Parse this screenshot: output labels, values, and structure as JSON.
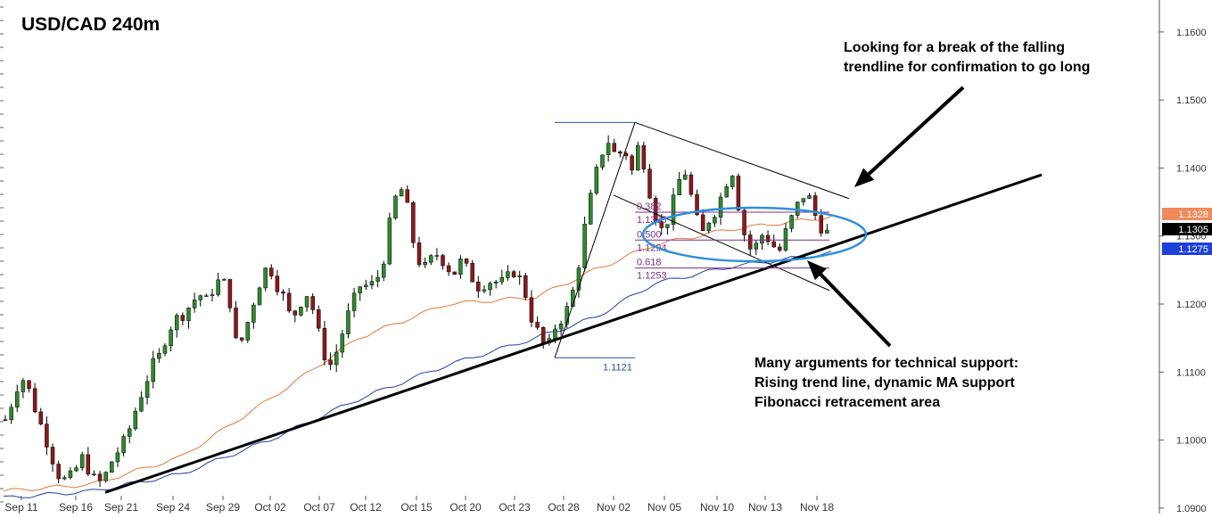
{
  "chart_data": {
    "type": "candlestick",
    "title": "USD/CAD 240m",
    "xlabel": "",
    "ylabel": "",
    "ylim": [
      1.0892,
      1.1647
    ],
    "y_ticks": [
      "1.1600",
      "1.1500",
      "1.1400",
      "1.1300",
      "1.1200",
      "1.1100",
      "1.1000",
      "1.0900"
    ],
    "x_labels": [
      "Sep 11",
      "Sep 16",
      "Sep 21",
      "Sep 24",
      "Sep 29",
      "Oct 02",
      "Oct 07",
      "Oct 12",
      "Oct 15",
      "Oct 20",
      "Oct 23",
      "Oct 28",
      "Nov 02",
      "Nov 05",
      "Nov 10",
      "Nov 13",
      "Nov 18"
    ],
    "price_path": [
      [
        1.103,
        1.104
      ],
      [
        1.106,
        1.107
      ],
      [
        1.1095,
        1.11
      ],
      [
        1.1075,
        1.1085
      ],
      [
        1.104,
        1.105
      ],
      [
        1.101,
        1.1
      ],
      [
        1.0975,
        1.097
      ],
      [
        1.0945,
        1.0955
      ],
      [
        1.094,
        1.095
      ],
      [
        1.0955,
        1.095
      ],
      [
        1.0975,
        1.096
      ],
      [
        1.095,
        1.094
      ],
      [
        1.0935,
        1.0938
      ],
      [
        1.095,
        1.0955
      ],
      [
        1.0975,
        1.097
      ],
      [
        1.099,
        1.0985
      ],
      [
        1.1015,
        1.1005
      ],
      [
        1.105,
        1.104
      ],
      [
        1.108,
        1.107
      ],
      [
        1.111,
        1.11
      ],
      [
        1.1125,
        1.113
      ],
      [
        1.116,
        1.115
      ],
      [
        1.1178,
        1.117
      ],
      [
        1.1185,
        1.118
      ],
      [
        1.12,
        1.119
      ],
      [
        1.1215,
        1.1205
      ],
      [
        1.1205,
        1.12
      ],
      [
        1.1225,
        1.121
      ],
      [
        1.124,
        1.123
      ],
      [
        1.1205,
        1.119
      ],
      [
        1.113,
        1.112
      ],
      [
        1.116,
        1.115
      ],
      [
        1.12,
        1.1195
      ],
      [
        1.1235,
        1.123
      ],
      [
        1.126,
        1.1255
      ],
      [
        1.123,
        1.1225
      ],
      [
        1.121,
        1.12
      ],
      [
        1.1175,
        1.1185
      ],
      [
        1.12,
        1.119
      ],
      [
        1.1215,
        1.1205
      ],
      [
        1.1185,
        1.1175
      ],
      [
        1.113,
        1.112
      ],
      [
        1.111,
        1.11
      ],
      [
        1.1135,
        1.1145
      ],
      [
        1.1175,
        1.117
      ],
      [
        1.1205,
        1.1195
      ],
      [
        1.123,
        1.122
      ],
      [
        1.1225,
        1.1215
      ],
      [
        1.1235,
        1.123
      ],
      [
        1.127,
        1.126
      ],
      [
        1.134,
        1.133
      ],
      [
        1.1375,
        1.137
      ],
      [
        1.134,
        1.133
      ],
      [
        1.1275,
        1.1265
      ],
      [
        1.125,
        1.1245
      ],
      [
        1.1265,
        1.126
      ],
      [
        1.1275,
        1.1265
      ],
      [
        1.1255,
        1.1245
      ],
      [
        1.1245,
        1.1235
      ],
      [
        1.1265,
        1.1255
      ],
      [
        1.1245,
        1.1235
      ],
      [
        1.1225,
        1.1215
      ],
      [
        1.123,
        1.1225
      ],
      [
        1.1235,
        1.123
      ],
      [
        1.123,
        1.1225
      ],
      [
        1.124,
        1.1235
      ],
      [
        1.125,
        1.1245
      ],
      [
        1.1225,
        1.1215
      ],
      [
        1.118,
        1.117
      ],
      [
        1.1155,
        1.115
      ],
      [
        1.113,
        1.1121
      ],
      [
        1.1165,
        1.116
      ],
      [
        1.118,
        1.119
      ],
      [
        1.12,
        1.1195
      ],
      [
        1.125,
        1.124
      ],
      [
        1.132,
        1.131
      ],
      [
        1.1375,
        1.1365
      ],
      [
        1.142,
        1.141
      ],
      [
        1.144,
        1.143
      ],
      [
        1.1415,
        1.1405
      ],
      [
        1.143,
        1.142
      ],
      [
        1.1395,
        1.1385
      ],
      [
        1.144,
        1.143
      ],
      [
        1.138,
        1.137
      ],
      [
        1.133,
        1.132
      ],
      [
        1.1305,
        1.1315
      ],
      [
        1.1335,
        1.133
      ],
      [
        1.138,
        1.1375
      ],
      [
        1.1395,
        1.1385
      ],
      [
        1.134,
        1.133
      ],
      [
        1.13,
        1.1295
      ],
      [
        1.1325,
        1.132
      ],
      [
        1.134,
        1.133
      ],
      [
        1.1375,
        1.137
      ],
      [
        1.1395,
        1.1385
      ],
      [
        1.133,
        1.132
      ],
      [
        1.128,
        1.1275
      ],
      [
        1.1285,
        1.1295
      ],
      [
        1.1305,
        1.13
      ],
      [
        1.129,
        1.128
      ],
      [
        1.1275,
        1.127
      ],
      [
        1.131,
        1.13
      ],
      [
        1.1335,
        1.1325
      ],
      [
        1.136,
        1.135
      ],
      [
        1.1355,
        1.1345
      ],
      [
        1.132,
        1.131
      ],
      [
        1.1305,
        1.1305
      ]
    ],
    "moving_averages": [
      {
        "name": "",
        "color": "#e8773a",
        "values": [
          [
            0,
            1.0925
          ],
          [
            15,
            1.0935
          ],
          [
            30,
            1.0975
          ],
          [
            45,
            1.106
          ],
          [
            60,
            1.115
          ],
          [
            75,
            1.12
          ],
          [
            90,
            1.121
          ],
          [
            100,
            1.125
          ],
          [
            110,
            1.1287
          ],
          [
            123,
            1.131
          ],
          [
            140,
            1.1328
          ]
        ]
      },
      {
        "name": "",
        "color": "#1f3fa8",
        "values": [
          [
            0,
            1.0915
          ],
          [
            15,
            1.0925
          ],
          [
            30,
            1.095
          ],
          [
            45,
            1.1
          ],
          [
            60,
            1.106
          ],
          [
            75,
            1.111
          ],
          [
            90,
            1.115
          ],
          [
            100,
            1.118
          ],
          [
            110,
            1.123
          ],
          [
            123,
            1.1255
          ],
          [
            140,
            1.1275
          ]
        ]
      }
    ],
    "trendlines": [
      {
        "name": "rising-support",
        "points": [
          [
            1.0923,
            "start"
          ],
          [
            1.139,
            "end"
          ]
        ]
      },
      {
        "name": "falling-resistance",
        "points": [
          [
            1.1467,
            "Nov 02 peak"
          ],
          [
            1.1355,
            "Nov 18"
          ]
        ]
      }
    ],
    "fibonacci": {
      "high": 1.1467,
      "low": 1.1121,
      "levels": [
        {
          "ratio": "0.382",
          "price": "1.1335"
        },
        {
          "ratio": "0.500",
          "price": "1.1294"
        },
        {
          "ratio": "0.618",
          "price": "1.1253"
        }
      ],
      "low_label": "1.1121"
    },
    "price_tags": [
      {
        "value": "1.1328",
        "color": "#f08a5d"
      },
      {
        "value": "1.1305",
        "color": "#000000"
      },
      {
        "value": "1.1275",
        "color": "#1e3fd8"
      }
    ],
    "annotations": [
      [
        "Looking for a break of the falling",
        "trendline for confirmation to go long"
      ],
      [
        "Many arguments for technical support:",
        "Rising trend line, dynamic MA support",
        "Fibonacci retracement area"
      ]
    ],
    "grid": false,
    "legend": "none"
  },
  "colors": {
    "bull": "#2e8b2e",
    "bear": "#8b1a1a",
    "wick": "#000000",
    "fib": "#7b2d8e",
    "ellipse": "#2f8fd8",
    "axis": "#444444"
  }
}
